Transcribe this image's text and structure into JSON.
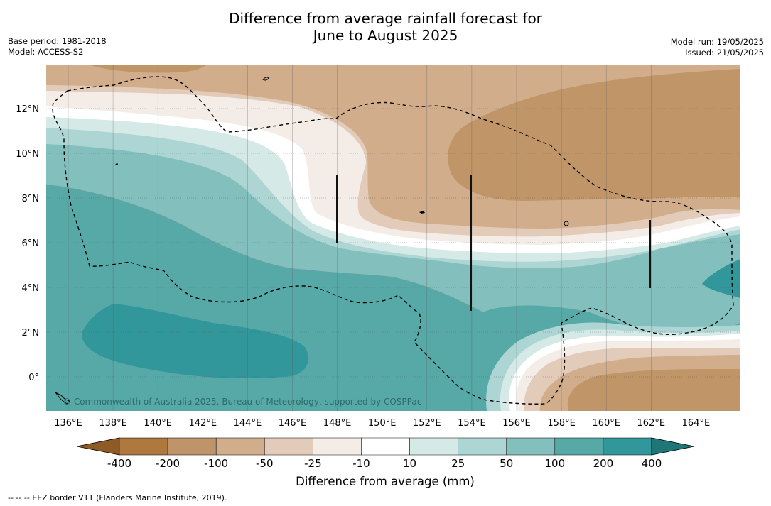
{
  "header": {
    "title_line1": "Difference from average rainfall forecast for",
    "title_line2": "June to August 2025",
    "base_period": "Base period: 1981-2018",
    "model": "Model: ACCESS-S2",
    "model_run": "Model run: 19/05/2025",
    "issued": "Issued: 21/05/2025"
  },
  "map": {
    "lon_labels": [
      "136°E",
      "138°E",
      "140°E",
      "142°E",
      "144°E",
      "146°E",
      "148°E",
      "150°E",
      "152°E",
      "154°E",
      "156°E",
      "158°E",
      "160°E",
      "162°E",
      "164°E"
    ],
    "lat_labels": [
      "12°N",
      "10°N",
      "8°N",
      "6°N",
      "4°N",
      "2°N",
      "0°"
    ],
    "copyright": "© Commonwealth of Australia 2025, Bureau of Meteorology, supported by COSPPac"
  },
  "legend": {
    "title": "Difference from average (mm)",
    "tick_labels": [
      "-400",
      "-200",
      "-100",
      "-50",
      "-25",
      "-10",
      "10",
      "25",
      "50",
      "100",
      "200",
      "400"
    ],
    "colors": [
      "#8e5a26",
      "#ae783f",
      "#bf9468",
      "#d1ad8b",
      "#e2cbb8",
      "#f4ece6",
      "#ffffff",
      "#d5e9e7",
      "#acd5d3",
      "#82bfbd",
      "#57a9a8",
      "#31979a",
      "#1f7676"
    ]
  },
  "footnote": "--  --  -- EEZ border V11 (Flanders Marine Institute, 2019)."
}
